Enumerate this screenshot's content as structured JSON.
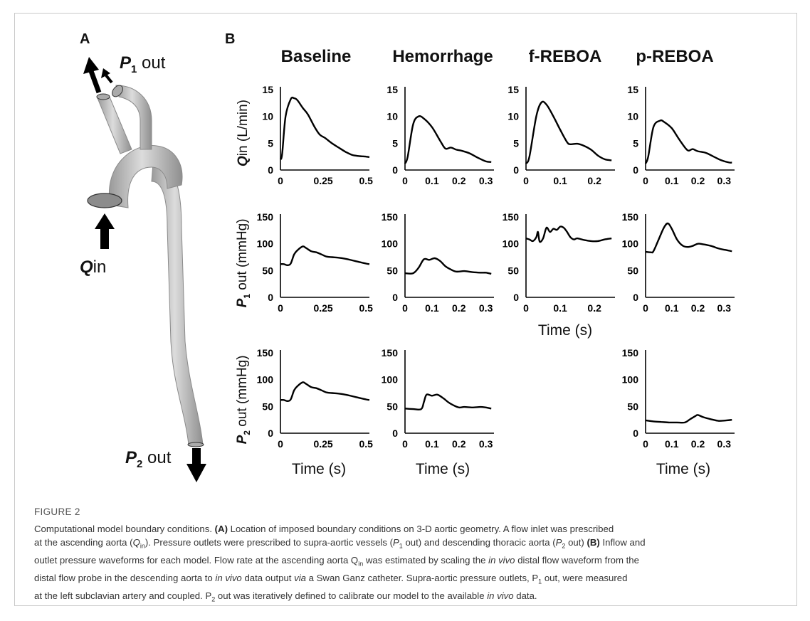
{
  "panels": {
    "a": "A",
    "b": "B"
  },
  "model_labels": {
    "p1_italic": "P",
    "p1_sub": "1",
    "p1_rest": " out",
    "p2_italic": "P",
    "p2_sub": "2",
    "p2_rest": " out",
    "qin_italic": "Q",
    "qin_rest": "in"
  },
  "columns": [
    "Baseline",
    "Hemorrhage",
    "f-REBOA",
    "p-REBOA"
  ],
  "row_labels": {
    "qin": {
      "italic": "Q",
      "rest": "in (L/min)"
    },
    "p1": {
      "italic": "P",
      "sub": "1",
      "rest": " out (mmHg)"
    },
    "p2": {
      "italic": "P",
      "sub": "2",
      "rest": " out (mmHg)"
    }
  },
  "time_label": "Time (s)",
  "colors": {
    "line": "#000000",
    "vessel": "#b5b5b5",
    "arrow": "#000000"
  },
  "chart_data": [
    {
      "type": "line",
      "row": "qin",
      "col": "Baseline",
      "ylim": [
        0,
        15
      ],
      "yticks": [
        "0",
        "5",
        "10",
        "15"
      ],
      "xlim": [
        0,
        0.52
      ],
      "xticks": [
        {
          "v": 0,
          "t": "0"
        },
        {
          "v": 0.25,
          "t": "0.25"
        },
        {
          "v": 0.5,
          "t": "0.5"
        }
      ],
      "x": [
        0,
        0.01,
        0.03,
        0.06,
        0.08,
        0.1,
        0.13,
        0.16,
        0.2,
        0.23,
        0.26,
        0.3,
        0.34,
        0.38,
        0.42,
        0.46,
        0.5,
        0.52
      ],
      "y": [
        2.0,
        3.0,
        10.0,
        13.2,
        13.4,
        13.0,
        11.6,
        10.4,
        8.0,
        6.6,
        6.0,
        5.0,
        4.2,
        3.4,
        2.8,
        2.6,
        2.5,
        2.4
      ]
    },
    {
      "type": "line",
      "row": "qin",
      "col": "Hemorrhage",
      "ylim": [
        0,
        15
      ],
      "yticks": [
        "0",
        "5",
        "10",
        "15"
      ],
      "xlim": [
        0,
        0.33
      ],
      "xticks": [
        {
          "v": 0,
          "t": "0"
        },
        {
          "v": 0.1,
          "t": "0.1"
        },
        {
          "v": 0.2,
          "t": "0.2"
        },
        {
          "v": 0.3,
          "t": "0.3"
        }
      ],
      "x": [
        0,
        0.01,
        0.03,
        0.05,
        0.07,
        0.1,
        0.13,
        0.15,
        0.17,
        0.19,
        0.21,
        0.24,
        0.27,
        0.3,
        0.32
      ],
      "y": [
        1.2,
        2.5,
        8.5,
        10.0,
        9.6,
        8.0,
        5.5,
        4.0,
        4.2,
        3.8,
        3.6,
        3.1,
        2.3,
        1.6,
        1.5
      ]
    },
    {
      "type": "line",
      "row": "qin",
      "col": "f-REBOA",
      "ylim": [
        0,
        15
      ],
      "yticks": [
        "0",
        "5",
        "10",
        "15"
      ],
      "xlim": [
        0,
        0.26
      ],
      "xticks": [
        {
          "v": 0,
          "t": "0"
        },
        {
          "v": 0.1,
          "t": "0.1"
        },
        {
          "v": 0.2,
          "t": "0.2"
        }
      ],
      "x": [
        0,
        0.01,
        0.03,
        0.045,
        0.06,
        0.08,
        0.1,
        0.12,
        0.13,
        0.15,
        0.17,
        0.19,
        0.21,
        0.23,
        0.25
      ],
      "y": [
        1.2,
        2.5,
        10.0,
        12.6,
        12.2,
        10.0,
        7.5,
        5.2,
        4.8,
        4.9,
        4.5,
        3.8,
        2.7,
        2.0,
        1.8
      ]
    },
    {
      "type": "line",
      "row": "qin",
      "col": "p-REBOA",
      "ylim": [
        0,
        15
      ],
      "yticks": [
        "0",
        "5",
        "10",
        "15"
      ],
      "xlim": [
        0,
        0.34
      ],
      "xticks": [
        {
          "v": 0,
          "t": "0"
        },
        {
          "v": 0.1,
          "t": "0.1"
        },
        {
          "v": 0.2,
          "t": "0.2"
        },
        {
          "v": 0.3,
          "t": "0.3"
        }
      ],
      "x": [
        0,
        0.01,
        0.03,
        0.055,
        0.07,
        0.1,
        0.13,
        0.16,
        0.18,
        0.2,
        0.23,
        0.26,
        0.29,
        0.32,
        0.33
      ],
      "y": [
        1.2,
        2.5,
        8.0,
        9.2,
        9.0,
        7.8,
        5.6,
        3.7,
        3.9,
        3.5,
        3.2,
        2.5,
        1.8,
        1.4,
        1.4
      ]
    },
    {
      "type": "line",
      "row": "p1",
      "col": "Baseline",
      "ylim": [
        0,
        150
      ],
      "yticks": [
        "0",
        "50",
        "100",
        "150"
      ],
      "xlim": [
        0,
        0.52
      ],
      "xticks": [
        {
          "v": 0,
          "t": "0"
        },
        {
          "v": 0.25,
          "t": "0.25"
        },
        {
          "v": 0.5,
          "t": "0.5"
        }
      ],
      "x": [
        0,
        0.02,
        0.04,
        0.06,
        0.08,
        0.1,
        0.13,
        0.15,
        0.18,
        0.21,
        0.24,
        0.27,
        0.3,
        0.34,
        0.38,
        0.42,
        0.46,
        0.5,
        0.52
      ],
      "y": [
        62,
        62,
        60,
        63,
        80,
        88,
        95,
        92,
        86,
        84,
        80,
        76,
        75,
        74,
        72,
        69,
        66,
        63,
        62
      ]
    },
    {
      "type": "line",
      "row": "p1",
      "col": "Hemorrhage",
      "ylim": [
        0,
        150
      ],
      "yticks": [
        "0",
        "50",
        "100",
        "150"
      ],
      "xlim": [
        0,
        0.33
      ],
      "xticks": [
        {
          "v": 0,
          "t": "0"
        },
        {
          "v": 0.1,
          "t": "0.1"
        },
        {
          "v": 0.2,
          "t": "0.2"
        },
        {
          "v": 0.3,
          "t": "0.3"
        }
      ],
      "x": [
        0,
        0.03,
        0.05,
        0.07,
        0.09,
        0.11,
        0.13,
        0.15,
        0.17,
        0.19,
        0.22,
        0.25,
        0.28,
        0.3,
        0.32
      ],
      "y": [
        45,
        45,
        55,
        71,
        70,
        73,
        68,
        58,
        52,
        48,
        49,
        47,
        46,
        46,
        44
      ]
    },
    {
      "type": "line",
      "row": "p1",
      "col": "f-REBOA",
      "ylim": [
        0,
        150
      ],
      "yticks": [
        "0",
        "50",
        "100",
        "150"
      ],
      "xlim": [
        0,
        0.26
      ],
      "xticks": [
        {
          "v": 0,
          "t": "0"
        },
        {
          "v": 0.1,
          "t": "0.1"
        },
        {
          "v": 0.2,
          "t": "0.2"
        }
      ],
      "x": [
        0,
        0.01,
        0.02,
        0.03,
        0.035,
        0.04,
        0.05,
        0.06,
        0.07,
        0.08,
        0.09,
        0.1,
        0.11,
        0.12,
        0.13,
        0.14,
        0.15,
        0.17,
        0.19,
        0.21,
        0.23,
        0.25
      ],
      "y": [
        110,
        108,
        105,
        112,
        122,
        104,
        110,
        130,
        122,
        128,
        126,
        132,
        130,
        122,
        112,
        108,
        110,
        107,
        105,
        105,
        108,
        110
      ]
    },
    {
      "type": "line",
      "row": "p1",
      "col": "p-REBOA",
      "ylim": [
        0,
        150
      ],
      "yticks": [
        "0",
        "50",
        "100",
        "150"
      ],
      "xlim": [
        0,
        0.34
      ],
      "xticks": [
        {
          "v": 0,
          "t": "0"
        },
        {
          "v": 0.1,
          "t": "0.1"
        },
        {
          "v": 0.2,
          "t": "0.2"
        },
        {
          "v": 0.3,
          "t": "0.3"
        }
      ],
      "x": [
        0,
        0.02,
        0.03,
        0.05,
        0.07,
        0.085,
        0.1,
        0.12,
        0.14,
        0.16,
        0.18,
        0.2,
        0.22,
        0.25,
        0.28,
        0.31,
        0.33
      ],
      "y": [
        85,
        84,
        86,
        108,
        130,
        138,
        128,
        108,
        97,
        94,
        96,
        100,
        99,
        96,
        91,
        88,
        86
      ]
    },
    {
      "type": "line",
      "row": "p2",
      "col": "Baseline",
      "ylim": [
        0,
        150
      ],
      "yticks": [
        "0",
        "50",
        "100",
        "150"
      ],
      "xlim": [
        0,
        0.52
      ],
      "xticks": [
        {
          "v": 0,
          "t": "0"
        },
        {
          "v": 0.25,
          "t": "0.25"
        },
        {
          "v": 0.5,
          "t": "0.5"
        }
      ],
      "x": [
        0,
        0.02,
        0.04,
        0.06,
        0.08,
        0.1,
        0.13,
        0.15,
        0.18,
        0.21,
        0.24,
        0.27,
        0.3,
        0.34,
        0.38,
        0.42,
        0.46,
        0.5,
        0.52
      ],
      "y": [
        62,
        62,
        60,
        63,
        80,
        88,
        95,
        92,
        86,
        84,
        80,
        76,
        75,
        74,
        72,
        69,
        66,
        63,
        62
      ]
    },
    {
      "type": "line",
      "row": "p2",
      "col": "Hemorrhage",
      "ylim": [
        0,
        150
      ],
      "yticks": [
        "0",
        "50",
        "100",
        "150"
      ],
      "xlim": [
        0,
        0.33
      ],
      "xticks": [
        {
          "v": 0,
          "t": "0"
        },
        {
          "v": 0.1,
          "t": "0.1"
        },
        {
          "v": 0.2,
          "t": "0.2"
        },
        {
          "v": 0.3,
          "t": "0.3"
        }
      ],
      "x": [
        0,
        0.03,
        0.06,
        0.07,
        0.08,
        0.1,
        0.12,
        0.14,
        0.16,
        0.18,
        0.2,
        0.22,
        0.25,
        0.28,
        0.3,
        0.32
      ],
      "y": [
        46,
        45,
        45,
        58,
        72,
        70,
        72,
        66,
        58,
        52,
        48,
        49,
        48,
        49,
        48,
        46
      ]
    },
    {
      "type": "line",
      "row": "p2",
      "col": "p-REBOA",
      "ylim": [
        0,
        150
      ],
      "yticks": [
        "0",
        "50",
        "100",
        "150"
      ],
      "xlim": [
        0,
        0.34
      ],
      "xticks": [
        {
          "v": 0,
          "t": "0"
        },
        {
          "v": 0.1,
          "t": "0.1"
        },
        {
          "v": 0.2,
          "t": "0.2"
        },
        {
          "v": 0.3,
          "t": "0.3"
        }
      ],
      "x": [
        0,
        0.03,
        0.06,
        0.09,
        0.12,
        0.15,
        0.17,
        0.19,
        0.2,
        0.22,
        0.25,
        0.28,
        0.31,
        0.33
      ],
      "y": [
        24,
        22,
        21,
        20,
        20,
        20,
        26,
        32,
        34,
        30,
        26,
        23,
        24,
        25
      ]
    }
  ],
  "caption": {
    "figure_number": "FIGURE 2",
    "line1": "Computational model boundary conditions. ",
    "a_label": "(A)",
    "line1b": " Location of imposed boundary conditions on 3-D aortic geometry. A flow inlet was prescribed",
    "line2a": "at the ascending aorta (",
    "q": "Q",
    "q_sub": "in",
    "line2b": "). Pressure outlets were prescribed to supra-aortic vessels (",
    "p1": "P",
    "p1_sub": "1",
    "line2c": " out) and descending thoracic aorta (",
    "p2": "P",
    "p2_sub": "2",
    "line2d": " out) ",
    "b_label": "(B)",
    "line2e": " Inflow and",
    "line3": "outlet pressure waveforms for each model. Flow rate at the ascending aorta Q",
    "line3_sub": "in",
    "line3b": " was estimated by scaling the ",
    "invivo1": "in vivo",
    "line3c": " distal flow waveform from the",
    "line4a": "distal flow probe in the descending aorta to ",
    "invivo2": "in vivo",
    "line4b": " data output ",
    "via": "via",
    "line4c": " a Swan Ganz catheter. Supra-aortic pressure outlets, P",
    "line4_sub": "1",
    "line4d": " out, were measured",
    "line5": "at the left subclavian artery and coupled. P",
    "line5_sub": "2",
    "line5b": " out was iteratively defined to calibrate our model to the available ",
    "invivo3": "in vivo",
    "line5c": " data."
  }
}
